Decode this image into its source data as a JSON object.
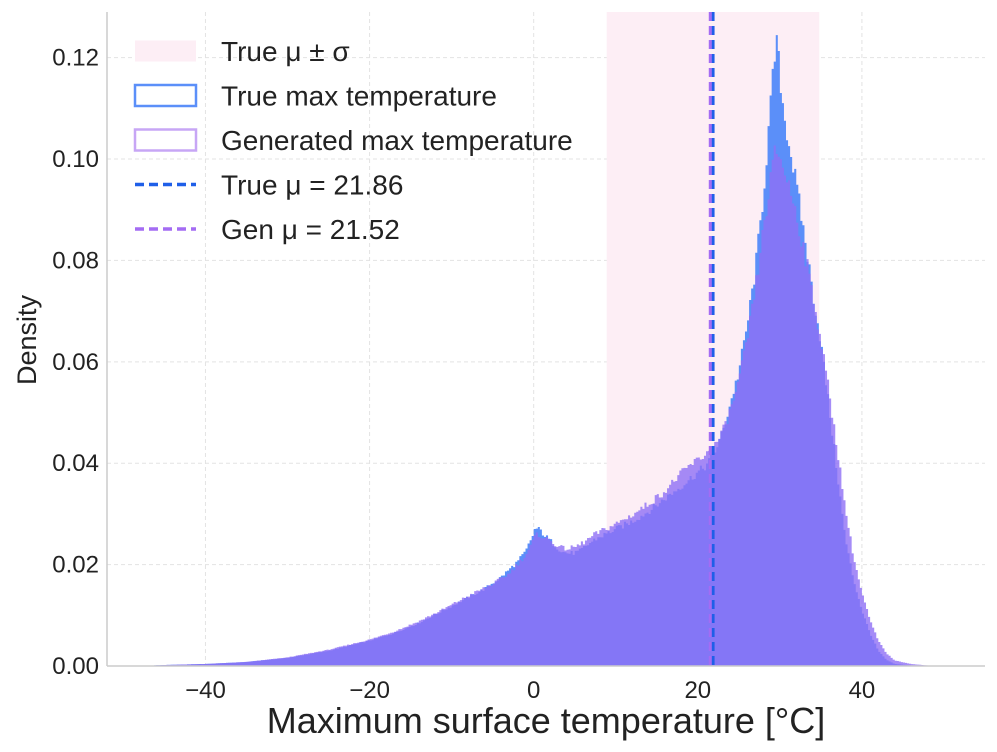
{
  "chart_data": {
    "type": "histogram",
    "xlabel": "Maximum surface temperature [°C]",
    "ylabel": "Density",
    "xlim": [
      -52,
      55
    ],
    "ylim": [
      0,
      0.129
    ],
    "xticks": [
      -40,
      -20,
      0,
      20,
      40
    ],
    "yticks": [
      0.0,
      0.02,
      0.04,
      0.06,
      0.08,
      0.1,
      0.12
    ],
    "xtick_labels": [
      "−40",
      "−20",
      "0",
      "20",
      "40"
    ],
    "ytick_labels": [
      "0.00",
      "0.02",
      "0.04",
      "0.06",
      "0.08",
      "0.10",
      "0.12"
    ],
    "grid": true,
    "legend_position": "top-left",
    "band": {
      "label": "True μ ± σ",
      "x0": 8.9,
      "x1": 34.8,
      "color": "#fdeef5"
    },
    "vlines": [
      {
        "label": "True μ = 21.86",
        "x": 21.86,
        "color": "#1f5fe8",
        "style": "dashed"
      },
      {
        "label": "Gen μ = 21.52",
        "x": 21.52,
        "color": "#a46cf3",
        "style": "dashed"
      }
    ],
    "series": [
      {
        "name": "True max temperature",
        "color": "#5b8ff9",
        "points": [
          [
            -48,
            0
          ],
          [
            -45,
            0.0002
          ],
          [
            -40,
            0.0004
          ],
          [
            -35,
            0.0008
          ],
          [
            -30,
            0.0016
          ],
          [
            -25,
            0.003
          ],
          [
            -20,
            0.005
          ],
          [
            -17,
            0.0065
          ],
          [
            -14,
            0.0085
          ],
          [
            -11,
            0.011
          ],
          [
            -8,
            0.0135
          ],
          [
            -6,
            0.0152
          ],
          [
            -4,
            0.0175
          ],
          [
            -2,
            0.0205
          ],
          [
            -1,
            0.0225
          ],
          [
            -0.3,
            0.025
          ],
          [
            0.2,
            0.0272
          ],
          [
            0.8,
            0.0268
          ],
          [
            1.5,
            0.0255
          ],
          [
            2.5,
            0.024
          ],
          [
            3.5,
            0.0225
          ],
          [
            4.5,
            0.0222
          ],
          [
            5.5,
            0.0225
          ],
          [
            6.5,
            0.0238
          ],
          [
            7.5,
            0.025
          ],
          [
            9,
            0.0262
          ],
          [
            10,
            0.027
          ],
          [
            12,
            0.0285
          ],
          [
            14,
            0.0305
          ],
          [
            16,
            0.033
          ],
          [
            18,
            0.0355
          ],
          [
            19.5,
            0.0375
          ],
          [
            21,
            0.0395
          ],
          [
            22,
            0.042
          ],
          [
            23,
            0.046
          ],
          [
            24,
            0.052
          ],
          [
            25,
            0.058
          ],
          [
            26,
            0.067
          ],
          [
            27,
            0.078
          ],
          [
            28,
            0.093
          ],
          [
            28.8,
            0.109
          ],
          [
            29.3,
            0.119
          ],
          [
            29.6,
            0.1232
          ],
          [
            30,
            0.117
          ],
          [
            30.5,
            0.109
          ],
          [
            31,
            0.1045
          ],
          [
            32,
            0.095
          ],
          [
            33,
            0.085
          ],
          [
            34,
            0.074
          ],
          [
            35,
            0.064
          ],
          [
            36,
            0.051
          ],
          [
            37,
            0.038
          ],
          [
            38,
            0.025
          ],
          [
            39,
            0.017
          ],
          [
            40,
            0.011
          ],
          [
            41,
            0.0065
          ],
          [
            42,
            0.003
          ],
          [
            43,
            0.0012
          ],
          [
            44,
            0.0004
          ],
          [
            46,
            0.0001
          ],
          [
            47,
            0
          ]
        ]
      },
      {
        "name": "Generated max temperature",
        "color": "#8f6ff5",
        "points": [
          [
            -48,
            0
          ],
          [
            -45,
            0.0002
          ],
          [
            -40,
            0.0004
          ],
          [
            -35,
            0.0008
          ],
          [
            -30,
            0.0017
          ],
          [
            -25,
            0.0032
          ],
          [
            -20,
            0.0052
          ],
          [
            -17,
            0.0068
          ],
          [
            -14,
            0.0088
          ],
          [
            -11,
            0.0112
          ],
          [
            -8,
            0.0138
          ],
          [
            -5,
            0.0162
          ],
          [
            -3,
            0.0182
          ],
          [
            -2,
            0.02
          ],
          [
            -1,
            0.0218
          ],
          [
            -0.3,
            0.0238
          ],
          [
            0.2,
            0.0258
          ],
          [
            0.8,
            0.0258
          ],
          [
            1.5,
            0.0252
          ],
          [
            2.5,
            0.0242
          ],
          [
            3.5,
            0.0232
          ],
          [
            4.5,
            0.0232
          ],
          [
            5.5,
            0.0238
          ],
          [
            6.5,
            0.0248
          ],
          [
            7.5,
            0.026
          ],
          [
            9,
            0.0272
          ],
          [
            10,
            0.028
          ],
          [
            12,
            0.0298
          ],
          [
            14,
            0.032
          ],
          [
            16,
            0.0345
          ],
          [
            17.5,
            0.0372
          ],
          [
            19,
            0.0395
          ],
          [
            20.5,
            0.0412
          ],
          [
            22,
            0.0432
          ],
          [
            23,
            0.046
          ],
          [
            24,
            0.0505
          ],
          [
            25,
            0.056
          ],
          [
            26,
            0.064
          ],
          [
            27,
            0.074
          ],
          [
            28,
            0.086
          ],
          [
            28.8,
            0.095
          ],
          [
            29.5,
            0.102
          ],
          [
            30,
            0.1005
          ],
          [
            31,
            0.0955
          ],
          [
            32,
            0.0895
          ],
          [
            33,
            0.0815
          ],
          [
            34,
            0.0735
          ],
          [
            35,
            0.0645
          ],
          [
            36,
            0.054
          ],
          [
            37,
            0.043
          ],
          [
            38,
            0.031
          ],
          [
            39,
            0.0215
          ],
          [
            40,
            0.0145
          ],
          [
            41,
            0.009
          ],
          [
            42,
            0.005
          ],
          [
            43,
            0.0025
          ],
          [
            44,
            0.0011
          ],
          [
            46,
            0.0004
          ],
          [
            48,
            0.0001
          ],
          [
            50,
            0
          ]
        ]
      }
    ]
  }
}
